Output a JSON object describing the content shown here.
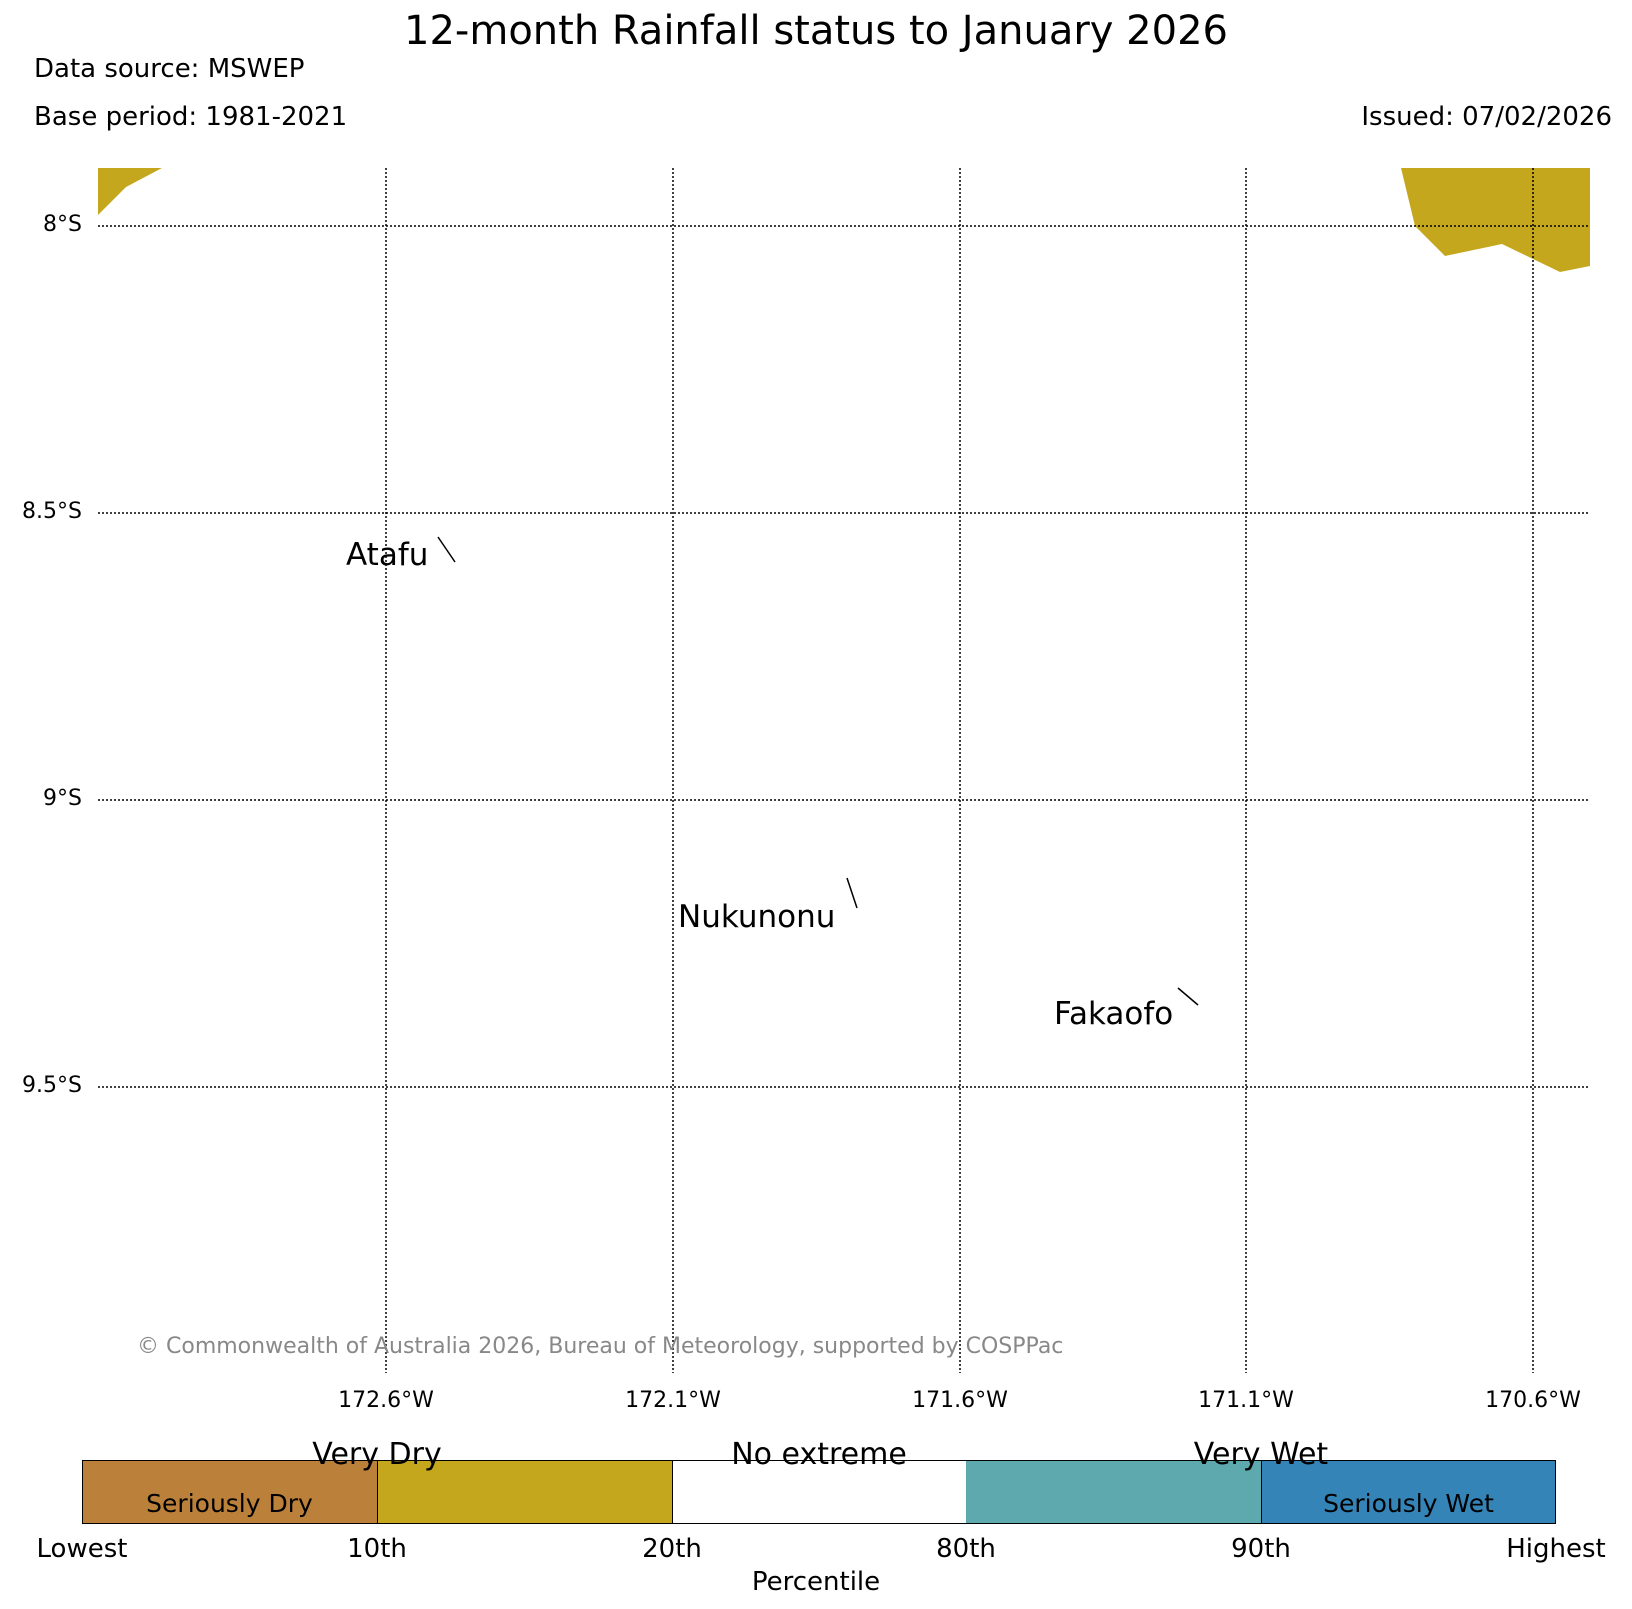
{
  "header": {
    "title": "12-month Rainfall status to January 2026",
    "data_source": "Data source: MSWEP",
    "base_period": "Base period: 1981-2021",
    "issued": "Issued: 07/02/2026"
  },
  "map": {
    "lat_labels": [
      "8°S",
      "8.5°S",
      "9°S",
      "9.5°S"
    ],
    "lon_labels": [
      "172.6°W",
      "172.1°W",
      "171.6°W",
      "171.1°W",
      "170.6°W"
    ],
    "places": [
      "Atafu",
      "Nukunonu",
      "Fakaofo"
    ],
    "shaded_category": "Very Dry",
    "copyright": "© Commonwealth of Australia 2026, Bureau of Meteorology, supported by COSPPac"
  },
  "legend": {
    "categories_top": [
      "Very Dry",
      "No extreme",
      "Very Wet"
    ],
    "categories_inside": [
      "Seriously Dry",
      "Seriously Wet"
    ],
    "ticks": [
      "Lowest",
      "10th",
      "20th",
      "80th",
      "90th",
      "Highest"
    ],
    "axis_label": "Percentile",
    "colors": {
      "seriously_dry": "#bb813b",
      "very_dry": "#c5a71e",
      "no_extreme": "#ffffff",
      "very_wet": "#5ea9ad",
      "seriously_wet": "#3484b8"
    }
  }
}
